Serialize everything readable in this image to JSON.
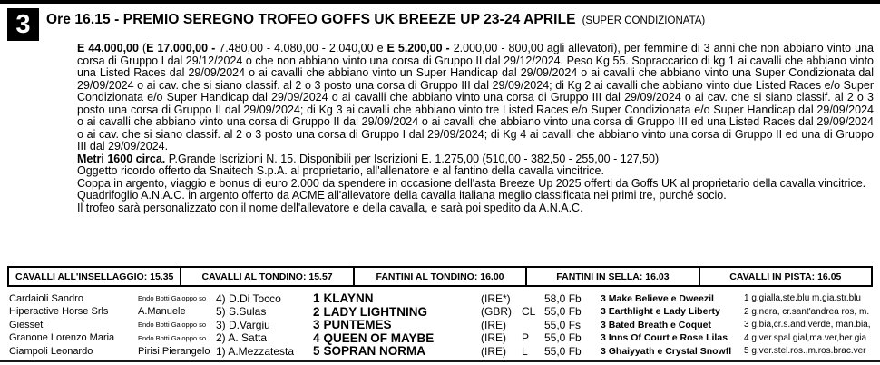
{
  "race": {
    "number": "3",
    "title": "Ore 16.15 - PREMIO SEREGNO TROFEO GOFFS UK BREEZE UP 23-24 APRILE",
    "subtitle": "(SUPER CONDIZIONATA)"
  },
  "conditions": {
    "total": "E 44.000,00",
    "sep1": " (",
    "winner_split": "E 17.000,00 -",
    "placings": " 7.480,00 - 4.080,00 - 2.040,00 e ",
    "breeders": "E 5.200,00 -",
    "body": " 2.000,00 - 800,00  agli allevatori), per femmine di 3 anni che non abbiano vinto una corsa di Gruppo I dal 29/12/2024 o che non abbiano vinto una corsa di Gruppo II dal 29/12/2024. Peso Kg 55. Sopraccarico di kg 1 ai cavalli che abbiano vinto una Listed Races dal 29/09/2024 o ai cavalli che abbiano vinto un Super Handicap dal 29/09/2024 o ai cavalli che abbiano vinto una Super Condizionata dal 29/09/2024 o ai cav. che si siano classif. al 2 o 3 posto una corsa di Gruppo III dal 29/09/2024; di Kg 2 ai cavalli che abbiano vinto due Listed Races e/o Super Condizionata e/o Super Handicap dal 29/09/2024 o ai cavalli che abbiano vinto una corsa di Gruppo III dal 29/09/2024 o ai cav. che si siano classif. al 2 o 3 posto una corsa di Gruppo II dal 29/09/2024; di Kg 3 ai cavalli che abbiano vinto tre Listed Races e/o Super Condizionata e/o Super Handicap dal 29/09/2024 o ai cavalli che abbiano vinto una corsa di Gruppo II dal 29/09/2024 o ai cavalli che abbiano vinto una corsa di Gruppo III ed una Listed Races dal 29/09/2024 o ai cav. che si siano classif. al 2 o 3 posto una corsa di Gruppo I dal 29/09/2024; di Kg 4 ai cavalli che abbiano vinto una corsa di Gruppo II ed una di Gruppo III dal 29/09/2024.",
    "distance": "Metri 1600 circa.",
    "entries_info": " P.Grande  Iscrizioni N. 15. Disponibili per Iscrizioni E. 1.275,00 (510,00 - 382,50 - 255,00 - 127,50)"
  },
  "prizes": [
    "Oggetto ricordo offerto da Snaitech S.p.A. al proprietario, all'allenatore e al fantino della cavalla vincitrice.",
    "Coppa in argento, viaggio e bonus di euro 2.000 da spendere in occasione dell'asta Breeze Up 2025 offerti da Goffs UK al proprietario della cavalla vincitrice.",
    "Quadrifoglio A.N.A.C. in argento offerto da ACME all'allevatore della cavalla italiana meglio classificata nei primi tre, purché socio.",
    "Il trofeo sarà personalizzato con il nome dell'allevatore e della cavalla, e sarà poi spedito da A.N.A.C."
  ],
  "schedule": {
    "items": [
      "CAVALLI ALL'INSELLAGGIO: 15.35",
      "CAVALLI AL TONDINO: 15.57",
      "FANTINI AL TONDINO: 16.00",
      "FANTINI IN SELLA: 16.03",
      "CAVALLI IN PISTA: 16.05"
    ]
  },
  "entries": [
    {
      "owner": "Cardaioli Sandro",
      "trainer": "Endo Botti Galoppo so",
      "jockey": "4) D.Di Tocco",
      "num": "1",
      "horse": "KLAYNN",
      "country": "(IRE*)",
      "equip": "",
      "weight": "58,0 Fb",
      "pedigree": "3 Make Believe e Dweezil",
      "colors": "1 g.gialla,ste.blu m.gia.str.blu"
    },
    {
      "owner": "Hiperactive Horse Srls",
      "trainer": "A.Manuele",
      "jockey": "5) S.Sulas",
      "num": "2",
      "horse": "LADY LIGHTNING",
      "country": "(GBR)",
      "equip": "CL",
      "weight": "55,0 Fb",
      "pedigree": "3 Earthlight e Lady Liberty",
      "colors": "2 g.nera, cr.sant'andrea ros, m."
    },
    {
      "owner": "Giesseti",
      "trainer": "Endo Botti Galoppo so",
      "jockey": "3) D.Vargiu",
      "num": "3",
      "horse": "PUNTEMES",
      "country": "(IRE)",
      "equip": "",
      "weight": "55,0 Fs",
      "pedigree": "3 Bated Breath e Coquet",
      "colors": "3 g.bia,cr.s.and.verde, man.bia,"
    },
    {
      "owner": "Granone Lorenzo Maria",
      "trainer": "Endo Botti Galoppo so",
      "jockey": "2) A. Satta",
      "num": "4",
      "horse": "QUEEN OF MAYBE",
      "country": "(IRE)",
      "equip": "P",
      "weight": "55,0 Fb",
      "pedigree": "3 Inns Of Court e Rose Lilas",
      "colors": "4 g.ver.spal gial,ma.ver,ber.gia"
    },
    {
      "owner": "Ciampoli Leonardo",
      "trainer": "Pirisi Pierangelo",
      "jockey": "1) A.Mezzatesta",
      "num": "5",
      "horse": "SOPRAN NORMA",
      "country": "(IRE)",
      "equip": "L",
      "weight": "55,0 Fb",
      "pedigree": "3 Ghaiyyath e Crystal Snowfl",
      "colors": "5 g.ver.stel.ros.,m.ros.brac.ver"
    }
  ]
}
